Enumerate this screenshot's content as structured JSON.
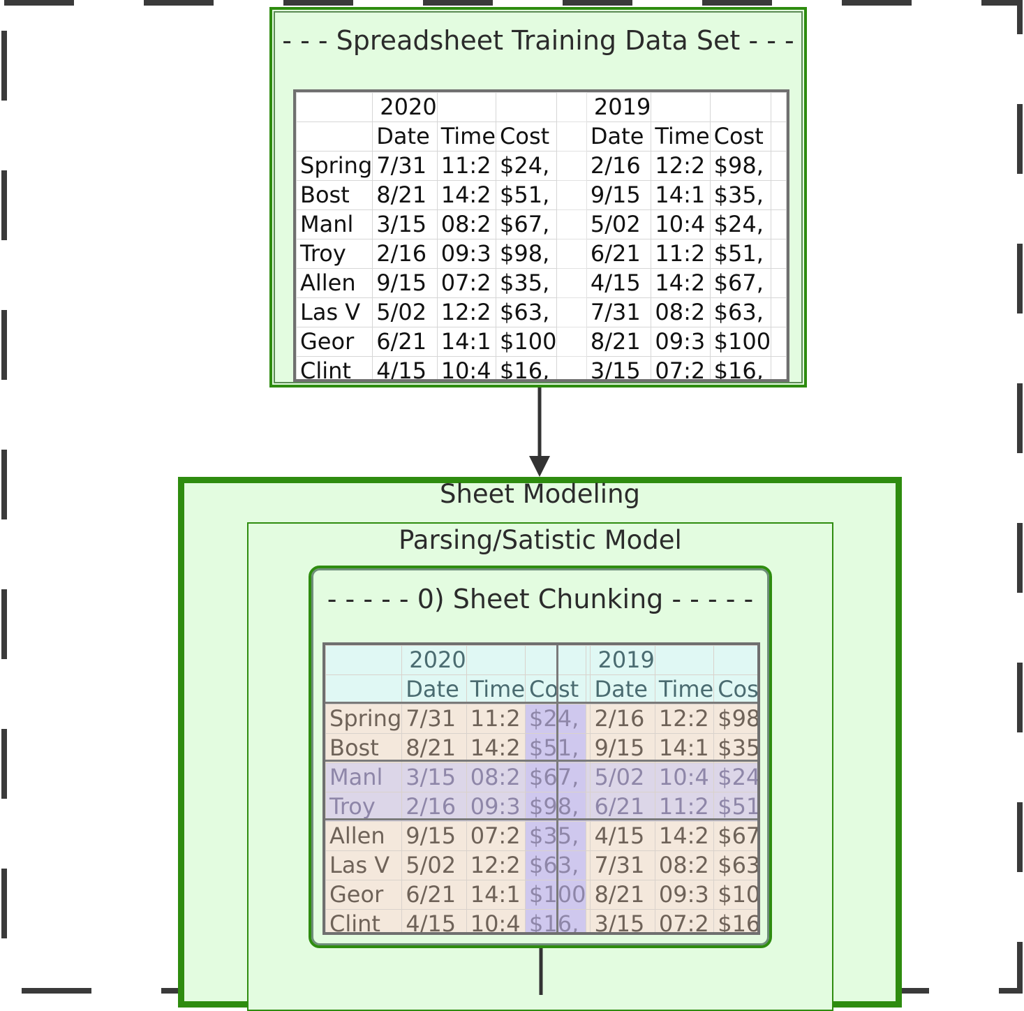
{
  "training": {
    "title": "- - - Spreadsheet Training Data Set - - -"
  },
  "sheet_modeling": {
    "title": "Sheet Modeling"
  },
  "parsing": {
    "title": "Parsing/Satistic Model"
  },
  "chunking": {
    "title": "- - - - - 0) Sheet Chunking - - - - -"
  },
  "sheet": {
    "header1": [
      "",
      "2020",
      "",
      "",
      "",
      "2019",
      "",
      "",
      ""
    ],
    "header2": [
      "",
      "Date",
      "Time",
      "Cost",
      "",
      "Date",
      "Time",
      "Cost",
      ""
    ],
    "rows": [
      [
        "Spring",
        "7/31",
        "11:2",
        "$24,",
        "",
        "2/16",
        "12:2",
        "$98,",
        ""
      ],
      [
        "Bost",
        "8/21",
        "14:2",
        "$51,",
        "",
        "9/15",
        "14:1",
        "$35,",
        ""
      ],
      [
        "Manl",
        "3/15",
        "08:2",
        "$67,",
        "",
        "5/02",
        "10:4",
        "$24,",
        ""
      ],
      [
        "Troy",
        "2/16",
        "09:3",
        "$98,",
        "",
        "6/21",
        "11:2",
        "$51,",
        ""
      ],
      [
        "Allen",
        "9/15",
        "07:2",
        "$35,",
        "",
        "4/15",
        "14:2",
        "$67,",
        ""
      ],
      [
        "Las V",
        "5/02",
        "12:2",
        "$63,",
        "",
        "7/31",
        "08:2",
        "$63,",
        ""
      ],
      [
        "Geor",
        "6/21",
        "14:1",
        "$100",
        "",
        "8/21",
        "09:3",
        "$100",
        ""
      ],
      [
        "Clint",
        "4/15",
        "10:4",
        "$16,",
        "",
        "3/15",
        "07:2",
        "$16,",
        ""
      ]
    ]
  },
  "colors": {
    "node_fill": "#e3fce0",
    "node_border": "#2e8c0f",
    "chunk_header": "#e0f8f4",
    "chunk_peach": "#f4e8dc",
    "chunk_lavender": "#dcd6e8",
    "chunk_cost_col": "#cfc8ee"
  }
}
